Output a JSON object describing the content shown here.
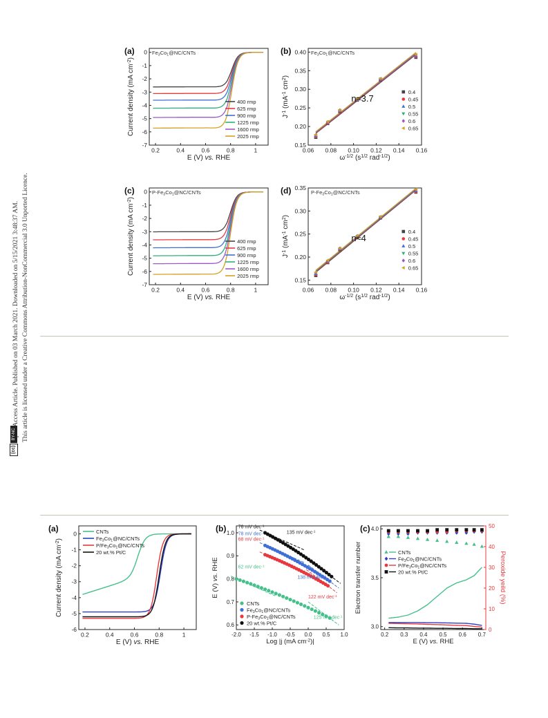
{
  "license": {
    "line1": "Open Access Article. Published on 03 March 2021. Downloaded on 5/15/2021 3:48:37 AM.",
    "line2": "This article is licensed under a Creative Commons Attribution-NonCommercial 3.0 Unported Licence.",
    "badge_cc": "(cc)",
    "badge_by": "BY-NC"
  },
  "chart_data": [
    {
      "panel": "(a)",
      "type": "line",
      "title": "Fe3Co1@NC/CNTs",
      "xlabel": "E (V) vs. RHE",
      "ylabel": "Current density (mA cm-2)",
      "xlim": [
        0.15,
        1.1
      ],
      "ylim": [
        -7,
        0.3
      ],
      "xticks": [
        0.2,
        0.4,
        0.6,
        0.8,
        1.0
      ],
      "yticks": [
        0,
        -1,
        -2,
        -3,
        -4,
        -5,
        -6,
        -7
      ],
      "kind": "lsv",
      "E_half": 0.81,
      "legend_position": "right",
      "series": [
        {
          "name": "400 rmp",
          "color": "#444444",
          "jL": -2.6
        },
        {
          "name": "625 rmp",
          "color": "#e8383d",
          "jL": -3.1
        },
        {
          "name": "900 rmp",
          "color": "#3f6fd6",
          "jL": -3.6
        },
        {
          "name": "1225 rmp",
          "color": "#2bb07a",
          "jL": -4.2
        },
        {
          "name": "1600 rmp",
          "color": "#9b59c6",
          "jL": -4.9
        },
        {
          "name": "2025 rmp",
          "color": "#d4a020",
          "jL": -5.7
        }
      ]
    },
    {
      "panel": "(b)",
      "type": "scatter",
      "title": "Fe3Co1@NC/CNTs",
      "xlabel": "ω-1/2 (s1/2 rad-1/2)",
      "ylabel": "J-1 (mA-1 cm2)",
      "xlim": [
        0.06,
        0.16
      ],
      "ylim": [
        0.15,
        0.41
      ],
      "xticks": [
        0.06,
        0.08,
        0.1,
        0.12,
        0.14,
        0.16
      ],
      "yticks": [
        0.15,
        0.2,
        0.25,
        0.3,
        0.35,
        0.4
      ],
      "annotation": "n≈3.7",
      "legend_position": "right",
      "x": [
        0.0667,
        0.0772,
        0.0879,
        0.1033,
        0.1238,
        0.155
      ],
      "series": [
        {
          "name": "0.4",
          "color": "#444444",
          "marker": "square",
          "values": [
            0.171,
            0.208,
            0.24,
            0.271,
            0.325,
            0.386
          ]
        },
        {
          "name": "0.45",
          "color": "#e8383d",
          "marker": "circle",
          "values": [
            0.173,
            0.209,
            0.241,
            0.272,
            0.326,
            0.388
          ]
        },
        {
          "name": "0.5",
          "color": "#3f6fd6",
          "marker": "triangle-up",
          "values": [
            0.175,
            0.211,
            0.243,
            0.273,
            0.327,
            0.39
          ]
        },
        {
          "name": "0.55",
          "color": "#2bb07a",
          "marker": "triangle-down",
          "values": [
            0.176,
            0.212,
            0.243,
            0.274,
            0.328,
            0.391
          ]
        },
        {
          "name": "0.6",
          "color": "#9b59c6",
          "marker": "diamond",
          "values": [
            0.177,
            0.212,
            0.244,
            0.274,
            0.328,
            0.392
          ]
        },
        {
          "name": "0.65",
          "color": "#d4a020",
          "marker": "triangle-left",
          "values": [
            0.178,
            0.213,
            0.244,
            0.275,
            0.329,
            0.394
          ]
        }
      ]
    },
    {
      "panel": "(c)",
      "type": "line",
      "title": "P-Fe3Co1@NC/CNTs",
      "xlabel": "E (V) vs. RHE",
      "ylabel": "Current density (mA cm-2)",
      "xlim": [
        0.15,
        1.1
      ],
      "ylim": [
        -7,
        0.3
      ],
      "xticks": [
        0.2,
        0.4,
        0.6,
        0.8,
        1.0
      ],
      "yticks": [
        0,
        -1,
        -2,
        -3,
        -4,
        -5,
        -6,
        -7
      ],
      "kind": "lsv",
      "E_half": 0.8,
      "legend_position": "right",
      "series": [
        {
          "name": "400 rmp",
          "color": "#444444",
          "jL": -3.0
        },
        {
          "name": "625 rmp",
          "color": "#e8383d",
          "jL": -3.6
        },
        {
          "name": "900 rmp",
          "color": "#3f6fd6",
          "jL": -4.2
        },
        {
          "name": "1225 rmp",
          "color": "#2bb07a",
          "jL": -4.8
        },
        {
          "name": "1600 rmp",
          "color": "#9b59c6",
          "jL": -5.4
        },
        {
          "name": "2025 rmp",
          "color": "#d4a020",
          "jL": -6.2
        }
      ]
    },
    {
      "panel": "(d)",
      "type": "scatter",
      "title": "P-Fe3Co1@NC/CNTs",
      "xlabel": "ω-1/2 (s1/2 rad-1/2)",
      "ylabel": "J-1 (mA-1 cm2)",
      "xlim": [
        0.06,
        0.16
      ],
      "ylim": [
        0.14,
        0.35
      ],
      "xticks": [
        0.06,
        0.08,
        0.1,
        0.12,
        0.14,
        0.16
      ],
      "yticks": [
        0.15,
        0.2,
        0.25,
        0.3,
        0.35
      ],
      "annotation": "n≈4",
      "legend_position": "right",
      "x": [
        0.0667,
        0.0772,
        0.0879,
        0.1033,
        0.1238,
        0.155
      ],
      "series": [
        {
          "name": "0.4",
          "color": "#444444",
          "marker": "square",
          "values": [
            0.16,
            0.188,
            0.216,
            0.243,
            0.285,
            0.341
          ]
        },
        {
          "name": "0.45",
          "color": "#e8383d",
          "marker": "circle",
          "values": [
            0.162,
            0.189,
            0.217,
            0.244,
            0.286,
            0.342
          ]
        },
        {
          "name": "0.5",
          "color": "#3f6fd6",
          "marker": "triangle-up",
          "values": [
            0.164,
            0.191,
            0.218,
            0.245,
            0.286,
            0.344
          ]
        },
        {
          "name": "0.55",
          "color": "#2bb07a",
          "marker": "triangle-down",
          "values": [
            0.165,
            0.191,
            0.218,
            0.245,
            0.287,
            0.345
          ]
        },
        {
          "name": "0.6",
          "color": "#9b59c6",
          "marker": "diamond",
          "values": [
            0.166,
            0.192,
            0.219,
            0.246,
            0.287,
            0.346
          ]
        },
        {
          "name": "0.65",
          "color": "#d4a020",
          "marker": "triangle-left",
          "values": [
            0.167,
            0.193,
            0.219,
            0.246,
            0.288,
            0.347
          ]
        }
      ]
    },
    {
      "panel": "(a)",
      "type": "line",
      "title": "",
      "xlabel": "E (V) vs. RHE",
      "ylabel": "Current density (mA cm-2)",
      "xlim": [
        0.15,
        1.1
      ],
      "ylim": [
        -6,
        0.5
      ],
      "xticks": [
        0.2,
        0.4,
        0.6,
        0.8,
        1.0
      ],
      "yticks": [
        0,
        -1,
        -2,
        -3,
        -4,
        -5,
        -6
      ],
      "kind": "lsv2",
      "legend_position": "top-left",
      "series": [
        {
          "name": "CNTs",
          "color": "#45c08a",
          "jL": -3.8,
          "E_half": 0.63,
          "plateau": -2.7
        },
        {
          "name": "Fe3Co1@NC/CNTs",
          "color": "#2e3fbf",
          "jL": -4.9,
          "E_half": 0.81
        },
        {
          "name": "P/Fe3Co1@NC/CNTs",
          "color": "#e8383d",
          "jL": -5.3,
          "E_half": 0.78
        },
        {
          "name": "20 wt.% Pt/C",
          "color": "#111111",
          "jL": -5.2,
          "E_half": 0.8
        }
      ]
    },
    {
      "panel": "(b)",
      "type": "scatter",
      "title": "",
      "xlabel": "Log |j (mA cm-2)|",
      "ylabel": "E (V) vs. RHE",
      "xlim": [
        -2.0,
        1.0
      ],
      "ylim": [
        0.58,
        1.03
      ],
      "xticks": [
        -2.0,
        -1.5,
        -1.0,
        -0.5,
        0.0,
        0.5,
        1.0
      ],
      "yticks": [
        0.6,
        0.7,
        0.8,
        0.9,
        1.0
      ],
      "legend_position": "bottom-left",
      "tafel_labels": [
        {
          "text": "76 mV dec-1",
          "color": "#222222"
        },
        {
          "text": "78 mV dec-1",
          "color": "#3f6fd6"
        },
        {
          "text": "68 mV dec-1",
          "color": "#e8383d"
        },
        {
          "text": "62 mV dec-1",
          "color": "#45c08a"
        },
        {
          "text": "135 mV dec-1",
          "color": "#222222"
        },
        {
          "text": "138 mV dec-1",
          "color": "#3f6fd6"
        },
        {
          "text": "122 mV dec-1",
          "color": "#e8383d"
        },
        {
          "text": "125 mV dec-1",
          "color": "#45c08a"
        }
      ],
      "series": [
        {
          "name": "CNTs",
          "color": "#45c08a",
          "marker": "circle",
          "x0": -2.0,
          "x1": 0.6,
          "y0": 0.8,
          "y1": 0.63
        },
        {
          "name": "Fe3Co1@NC/CNTs",
          "color": "#3f6fd6",
          "marker": "circle",
          "x0": -1.2,
          "x1": 0.6,
          "y0": 0.945,
          "y1": 0.79
        },
        {
          "name": "P-Fe3Co1@NC/CNTs",
          "color": "#e8383d",
          "marker": "circle",
          "x0": -1.2,
          "x1": 0.55,
          "y0": 0.905,
          "y1": 0.77
        },
        {
          "name": "20 wt.% Pt/C",
          "color": "#111111",
          "marker": "circle",
          "x0": -1.2,
          "x1": 0.65,
          "y0": 1.0,
          "y1": 0.81
        }
      ]
    },
    {
      "panel": "(c)",
      "type": "line",
      "title": "",
      "xlabel": "E (V) vs. RHE",
      "ylabel": "Electron transfer number",
      "y2label": "Peroxide yeild (%)",
      "xlim": [
        0.18,
        0.72
      ],
      "ylim": [
        2.97,
        4.03
      ],
      "y2lim": [
        0,
        50
      ],
      "xticks": [
        0.2,
        0.3,
        0.4,
        0.5,
        0.6,
        0.7
      ],
      "yticks": [
        3.0,
        3.5,
        4.0
      ],
      "y2ticks": [
        0,
        10,
        20,
        30,
        40,
        50
      ],
      "legend_position": "center-left",
      "series": [
        {
          "name": "CNTs",
          "color": "#45c08a",
          "marker": "triangle-up",
          "n": [
            3.92,
            3.92,
            3.91,
            3.9,
            3.89,
            3.88,
            3.87,
            3.86,
            3.85,
            3.84,
            3.82
          ],
          "peroxide": [
            5.5,
            6,
            7,
            9,
            12,
            16,
            20,
            22.5,
            24,
            26,
            30
          ]
        },
        {
          "name": "Fe3Co1@NC/CNTs",
          "color": "#2e3fbf",
          "marker": "diamond",
          "n": [
            3.95,
            3.95,
            3.95,
            3.96,
            3.96,
            3.96,
            3.96,
            3.96,
            3.96,
            3.97,
            3.97
          ],
          "peroxide": [
            3.4,
            3.4,
            3.4,
            3.4,
            3.3,
            3.3,
            3.2,
            3.1,
            3.0,
            2.6,
            2.0
          ]
        },
        {
          "name": "P/Fe3Co1@NC/CNTs",
          "color": "#e8383d",
          "marker": "circle",
          "n": [
            3.97,
            3.97,
            3.97,
            3.97,
            3.97,
            3.97,
            3.97,
            3.98,
            3.98,
            3.98,
            3.98
          ],
          "peroxide": [
            3.0,
            2.9,
            2.8,
            2.7,
            2.5,
            2.4,
            2.2,
            2.0,
            1.9,
            1.5,
            1.2
          ]
        },
        {
          "name": "20 wt.% Pt/C",
          "color": "#111111",
          "marker": "square",
          "n": [
            3.98,
            3.98,
            3.98,
            3.98,
            3.98,
            3.99,
            3.99,
            3.99,
            3.99,
            3.99,
            3.99
          ],
          "peroxide": [
            0.9,
            0.8,
            0.8,
            0.7,
            0.7,
            0.6,
            0.6,
            0.5,
            0.5,
            0.4,
            0.4
          ]
        }
      ],
      "x": [
        0.22,
        0.27,
        0.32,
        0.37,
        0.42,
        0.47,
        0.52,
        0.57,
        0.62,
        0.66,
        0.7
      ]
    }
  ]
}
